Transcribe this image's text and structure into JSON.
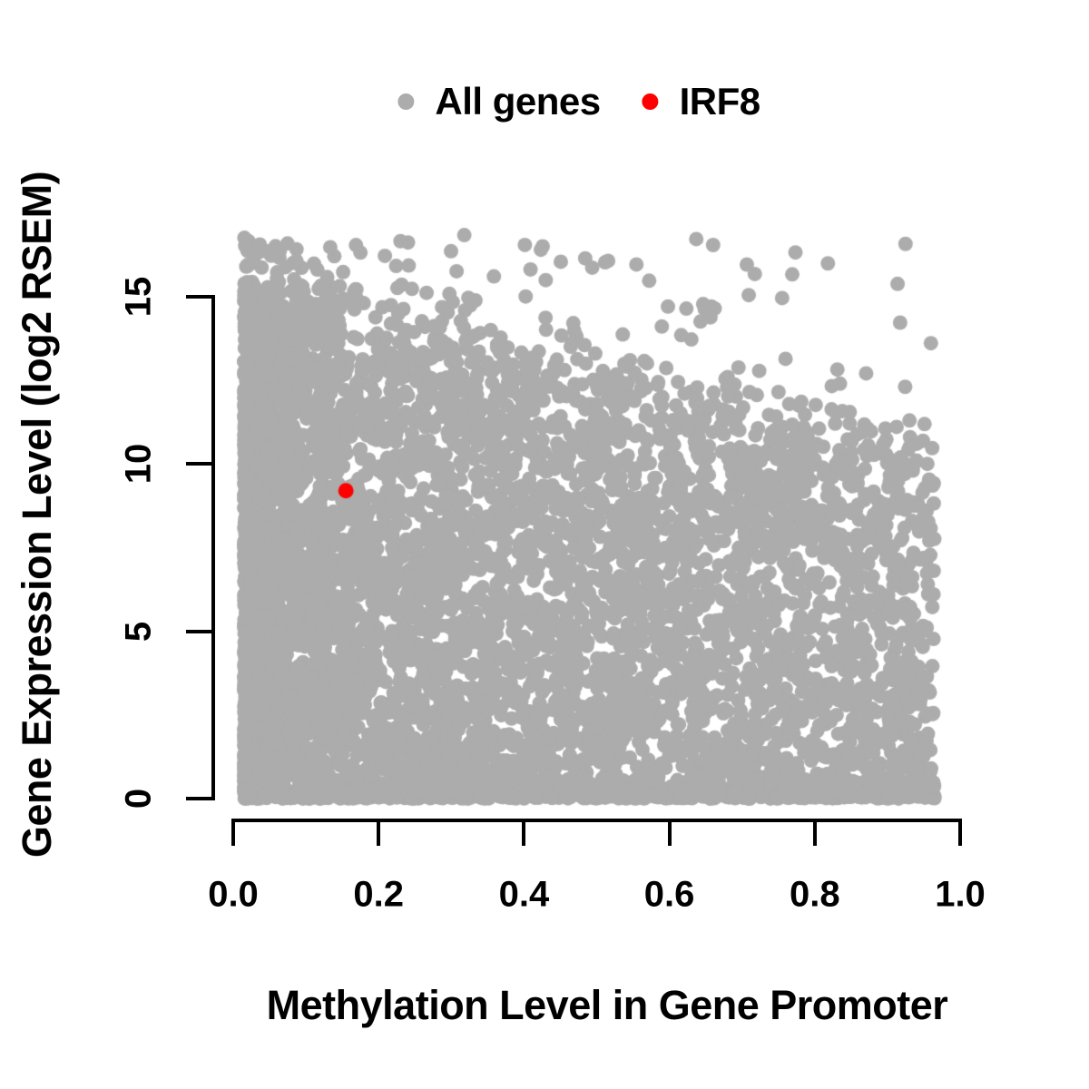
{
  "figure": {
    "background": "#FFFFFF",
    "text_color": "#000000",
    "axis_color": "#000000"
  },
  "legend": {
    "items": [
      {
        "label": "All genes",
        "color": "#ACACAC",
        "marker": "filled-circle"
      },
      {
        "label": "IRF8",
        "color": "#FF0000",
        "marker": "filled-circle"
      }
    ]
  },
  "chart_data": {
    "type": "scatter",
    "title": "",
    "xlabel": "Methylation Level in Gene Promoter",
    "ylabel": "Gene Expression Level (log2 RSEM)",
    "xlim": [
      0,
      1
    ],
    "ylim": [
      0,
      17
    ],
    "grid": false,
    "legend_position": "top-center",
    "x_ticks": {
      "values": [
        0,
        0.2,
        0.4,
        0.6,
        0.8,
        1.0
      ],
      "labels": [
        "0.0",
        "0.2",
        "0.4",
        "0.6",
        "0.8",
        "1.0"
      ]
    },
    "y_ticks": {
      "values": [
        0,
        5,
        10,
        15
      ],
      "labels": [
        "0",
        "5",
        "10",
        "15"
      ]
    },
    "point_radius_px": 8,
    "series": [
      {
        "name": "All genes",
        "color": "#ACACAC",
        "marker": "filled-circle",
        "representation": "procedural-density-cloud",
        "n_points": 7000,
        "seed": 1337,
        "x_range": [
          0.015,
          0.965
        ],
        "x_left_skew_power": 1.7,
        "upper_envelope": {
          "intercept": 15.0,
          "slope": -4.8,
          "jitter": 0.9
        },
        "y_bottom_bias_power": 1.15,
        "zero_band_fraction": 0.1,
        "zero_band_sigma": 0.18,
        "above_envelope_fraction": 0.035,
        "y_max_outlier": 16.9,
        "description": "Dense negative-envelope cloud: near-solid column at low methylation spanning expression 0-15, density and max expression decreasing toward methylation 1.0, solid band at expression 0, sparse outliers up to ~16.9"
      },
      {
        "name": "IRF8",
        "color": "#FF0000",
        "marker": "filled-circle",
        "points": [
          [
            0.155,
            9.2
          ]
        ]
      }
    ]
  }
}
